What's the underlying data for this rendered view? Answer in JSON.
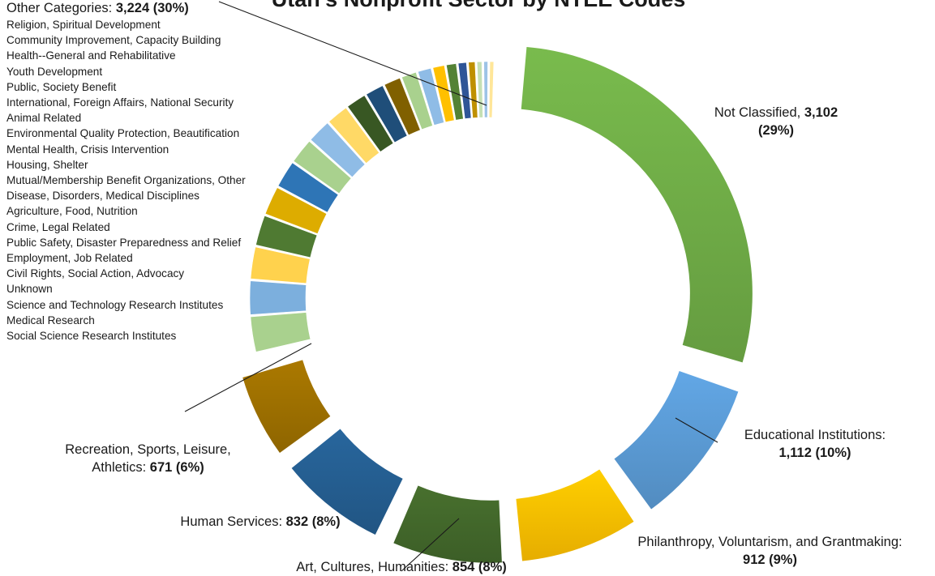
{
  "chart_data": {
    "type": "doughnut",
    "title": "Utah's Nonprofit Sector by NTEE Codes",
    "slices": [
      {
        "name": "Not Classified",
        "value": 3102,
        "pct": "29%",
        "color": "#70ad47",
        "value_label": "3,102",
        "pct_label": "(29%)"
      },
      {
        "name": "Educational Institutions",
        "value": 1112,
        "pct": "10%",
        "color": "#5b9bd5",
        "value_label": "1,112",
        "pct_label": "(10%)"
      },
      {
        "name": "Philanthropy, Voluntarism, and Grantmaking",
        "value": 912,
        "pct": "9%",
        "color": "#ffc000",
        "value_label": "912",
        "pct_label": "(9%)"
      },
      {
        "name": "Art, Cultures, Humanities",
        "value": 854,
        "pct": "8%",
        "color": "#43682b",
        "value_label": "854",
        "pct_label": "(8%)"
      },
      {
        "name": "Human Services",
        "value": 832,
        "pct": "8%",
        "color": "#255e91",
        "value_label": "832",
        "pct_label": "(8%)"
      },
      {
        "name": "Recreation, Sports, Leisure, Athletics",
        "value": 671,
        "pct": "6%",
        "color": "#9e7000",
        "value_label": "671",
        "pct_label": "(6%)"
      }
    ],
    "other": {
      "name": "Other Categories",
      "value": 3224,
      "value_label": "3,224",
      "pct_label": "(30%)",
      "items": [
        "Religion, Spiritual Development",
        "Community Improvement, Capacity Building",
        "Health--General and Rehabilitative",
        "Youth Development",
        "Public, Society Benefit",
        "International, Foreign Affairs, National Security",
        "Animal Related",
        "Environmental Quality Protection, Beautification",
        "Mental Health, Crisis Intervention",
        "Housing, Shelter",
        "Mutual/Membership Benefit Organizations, Other",
        "Disease, Disorders, Medical Disciplines",
        "Agriculture, Food, Nutrition",
        "Crime, Legal Related",
        "Public Safety, Disaster Preparedness and Relief",
        "Employment, Job Related",
        "Civil Rights, Social Action, Advocacy",
        "Unknown",
        "Science and Technology Research Institutes",
        "Medical Research",
        "Social Science Research Institutes"
      ],
      "item_colors": [
        "#a9d18e",
        "#7cafdd",
        "#ffd24d",
        "#4f7a32",
        "#ddac00",
        "#2e75b6",
        "#a9d18e",
        "#8fbce6",
        "#ffd966",
        "#385723",
        "#1f4e79",
        "#806000",
        "#a9d18e",
        "#8fbce6",
        "#ffc000",
        "#548235",
        "#2f5597",
        "#bf9000",
        "#c5e0b4",
        "#9dc3e6",
        "#ffe699"
      ]
    }
  }
}
